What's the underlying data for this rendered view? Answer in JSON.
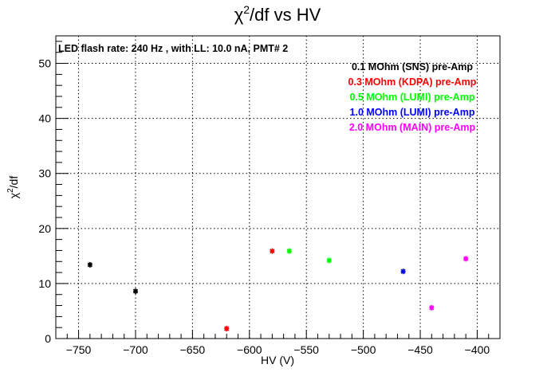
{
  "chart_data": {
    "type": "scatter",
    "title_main": "χ",
    "title_sup": "2",
    "title_rest": "/df vs HV",
    "xlabel": "HV (V)",
    "ylabel_main": "χ",
    "ylabel_sup": "2",
    "ylabel_rest": "/df",
    "xlim": [
      -770,
      -380
    ],
    "ylim": [
      0,
      55
    ],
    "xticks": [
      -750,
      -700,
      -650,
      -600,
      -550,
      -500,
      -450,
      -400
    ],
    "xtick_labels": [
      "−750",
      "−700",
      "−650",
      "−600",
      "−550",
      "−500",
      "−450",
      "−400"
    ],
    "yticks": [
      0,
      10,
      20,
      30,
      40,
      50
    ],
    "ytick_labels": [
      "0",
      "10",
      "20",
      "30",
      "40",
      "50"
    ],
    "grid": true,
    "annotation": "LED flash rate: 240 Hz , with LL: 10.0 nA, PMT# 2",
    "legend_position": "top-right",
    "series": [
      {
        "name": "0.1 MOhm (SNS) pre-Amp",
        "color": "#000000",
        "points": [
          [
            -740,
            13.4
          ],
          [
            -700,
            8.6
          ]
        ]
      },
      {
        "name": "0.3 MOhm (KDPA) pre-Amp",
        "color": "#ff0000",
        "points": [
          [
            -620,
            1.8
          ],
          [
            -580,
            15.9
          ]
        ]
      },
      {
        "name": "0.5 MOhm (LUMI) pre-Amp",
        "color": "#00ff00",
        "points": [
          [
            -565,
            15.9
          ],
          [
            -530,
            14.2
          ]
        ]
      },
      {
        "name": "1.0 MOhm (LUMI) pre-Amp",
        "color": "#0000ff",
        "points": [
          [
            -465,
            12.2
          ]
        ]
      },
      {
        "name": "2.0 MOhm (MAIN) pre-Amp",
        "color": "#ff00ff",
        "points": [
          [
            -440,
            5.6
          ],
          [
            -410,
            14.5
          ]
        ]
      }
    ]
  }
}
